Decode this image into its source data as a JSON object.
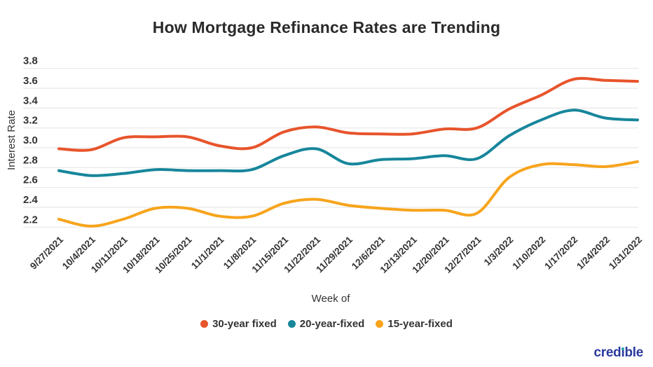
{
  "chart_data": {
    "type": "line",
    "title": "How Mortgage Refinance Rates are Trending",
    "xlabel": "Week of",
    "ylabel": "Interest Rate",
    "categories": [
      "9/27/2021",
      "10/4/2021",
      "10/11/2021",
      "10/18/2021",
      "10/25/2021",
      "11/1/2021",
      "11/8/2021",
      "11/15/2021",
      "11/22/2021",
      "11/29/2021",
      "12/6/2021",
      "12/13/2021",
      "12/20/2021",
      "12/27/2021",
      "1/3/2022",
      "1/10/2022",
      "1/17/2022",
      "1/24/2022",
      "1/31/2022"
    ],
    "series": [
      {
        "name": "30-year fixed",
        "color": "#E8542B",
        "values": [
          2.99,
          2.98,
          3.1,
          3.11,
          3.11,
          3.02,
          3.0,
          3.16,
          3.21,
          3.15,
          3.14,
          3.14,
          3.19,
          3.2,
          3.39,
          3.53,
          3.69,
          3.68,
          3.67
        ]
      },
      {
        "name": "20-year-fixed",
        "color": "#17869B",
        "values": [
          2.77,
          2.72,
          2.74,
          2.78,
          2.77,
          2.77,
          2.78,
          2.92,
          2.99,
          2.84,
          2.88,
          2.89,
          2.92,
          2.89,
          3.12,
          3.28,
          3.38,
          3.3,
          3.28
        ]
      },
      {
        "name": "15-year-fixed",
        "color": "#F7A41C",
        "values": [
          2.28,
          2.21,
          2.28,
          2.39,
          2.39,
          2.31,
          2.31,
          2.44,
          2.48,
          2.42,
          2.39,
          2.37,
          2.37,
          2.34,
          2.7,
          2.83,
          2.83,
          2.81,
          2.86
        ]
      }
    ],
    "ylim": [
      2.2,
      3.8
    ],
    "ytick_step": 0.2,
    "yticks": [
      "3.8",
      "3.6",
      "3.4",
      "3.2",
      "3.0",
      "2.8",
      "2.6",
      "2.4",
      "2.2"
    ],
    "grid": "horizontal",
    "legend_position": "bottom"
  },
  "branding": {
    "logo_text": "credible",
    "logo_color": "#2B3A9E",
    "logo_dot_color": "#21A6A6"
  },
  "style": {
    "gridline_color": "#e7e7e7",
    "text_color": "#333333",
    "title_color": "#2a2a2a"
  }
}
